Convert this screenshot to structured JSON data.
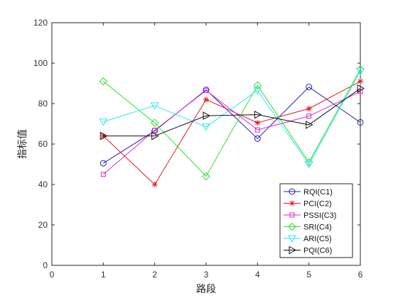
{
  "chart_data": {
    "type": "line",
    "xlabel": "路段",
    "ylabel": "指标值",
    "xlim": [
      0,
      6
    ],
    "ylim": [
      0,
      120
    ],
    "xticks": [
      0,
      1,
      2,
      3,
      4,
      5,
      6
    ],
    "yticks": [
      0,
      20,
      40,
      60,
      80,
      100,
      120
    ],
    "grid": false,
    "legend_position": "bottom-right",
    "x": [
      1,
      2,
      3,
      4,
      5,
      6
    ],
    "series": [
      {
        "name": "RQI(C1)",
        "color": "#1f1fb4",
        "marker": "circle",
        "values": [
          50.5,
          66.5,
          86.8,
          62.7,
          88.2,
          70.7
        ]
      },
      {
        "name": "PCI(C2)",
        "color": "#e41a1c",
        "marker": "asterisk",
        "values": [
          64.0,
          40.0,
          82.0,
          70.5,
          77.5,
          91.0
        ]
      },
      {
        "name": "PSSI(C3)",
        "color": "#d62bd6",
        "marker": "square",
        "values": [
          45.0,
          66.8,
          86.5,
          67.0,
          73.8,
          86.0
        ]
      },
      {
        "name": "SRI(C4)",
        "color": "#2ee02e",
        "marker": "diamond",
        "values": [
          91.0,
          70.5,
          44.0,
          89.0,
          51.0,
          97.0
        ]
      },
      {
        "name": "ARI(C5)",
        "color": "#33e6f0",
        "marker": "triangle-down",
        "values": [
          71.0,
          79.0,
          68.5,
          86.5,
          50.0,
          96.0
        ]
      },
      {
        "name": "PQI(C6)",
        "color": "#111111",
        "marker": "triangle-right",
        "values": [
          64.0,
          64.0,
          74.0,
          74.5,
          69.5,
          87.5
        ]
      }
    ]
  }
}
